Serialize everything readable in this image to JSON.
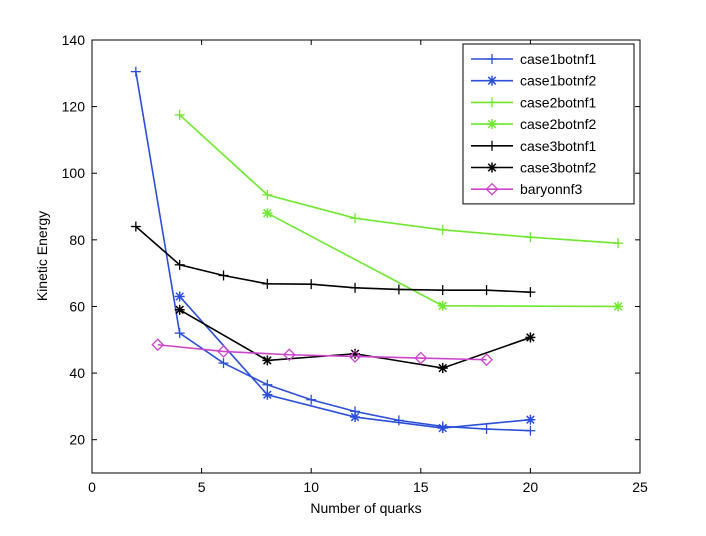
{
  "chart_data": {
    "type": "line",
    "title": "",
    "xlabel": "Number of quarks",
    "ylabel": "Kinetic Energy",
    "xlim": [
      0,
      25
    ],
    "ylim": [
      10,
      140
    ],
    "xticks": [
      0,
      5,
      10,
      15,
      20,
      25
    ],
    "yticks": [
      20,
      40,
      60,
      80,
      100,
      120,
      140
    ],
    "grid": false,
    "legend_position": "top-right",
    "series": [
      {
        "name": "case1botnf1",
        "color": "#2b4fd8",
        "marker": "plus",
        "x": [
          2,
          4,
          6,
          8,
          10,
          12,
          14,
          16,
          18,
          20
        ],
        "y": [
          130.5,
          52,
          43,
          36.5,
          32,
          28.5,
          25.8,
          24,
          23.2,
          22.7
        ]
      },
      {
        "name": "case1botnf2",
        "color": "#2b4fd8",
        "marker": "star",
        "x": [
          4,
          8,
          12,
          16,
          20
        ],
        "y": [
          63,
          33.5,
          26.8,
          23.5,
          26
        ]
      },
      {
        "name": "case2botnf1",
        "color": "#6ee82e",
        "marker": "plus",
        "x": [
          4,
          8,
          12,
          16,
          20,
          24
        ],
        "y": [
          117.5,
          93.5,
          86.5,
          83,
          80.8,
          79
        ]
      },
      {
        "name": "case2botnf2",
        "color": "#6ee82e",
        "marker": "star",
        "x": [
          8,
          16,
          24
        ],
        "y": [
          88,
          60.2,
          60
        ]
      },
      {
        "name": "case3botnf1",
        "color": "#000000",
        "marker": "plus",
        "x": [
          2,
          4,
          6,
          8,
          10,
          12,
          14,
          16,
          18,
          20
        ],
        "y": [
          84,
          72.5,
          69.3,
          66.8,
          66.7,
          65.6,
          65.1,
          64.9,
          64.9,
          64.3
        ]
      },
      {
        "name": "case3botnf2",
        "color": "#000000",
        "marker": "star",
        "x": [
          4,
          8,
          12,
          16,
          20
        ],
        "y": [
          59,
          43.8,
          45.8,
          41.5,
          50.7
        ]
      },
      {
        "name": "baryonnf3",
        "color": "#cc44cc",
        "marker": "diamond",
        "x": [
          3,
          6,
          9,
          12,
          15,
          18
        ],
        "y": [
          48.5,
          46.5,
          45.5,
          45,
          44.5,
          44
        ]
      }
    ]
  }
}
